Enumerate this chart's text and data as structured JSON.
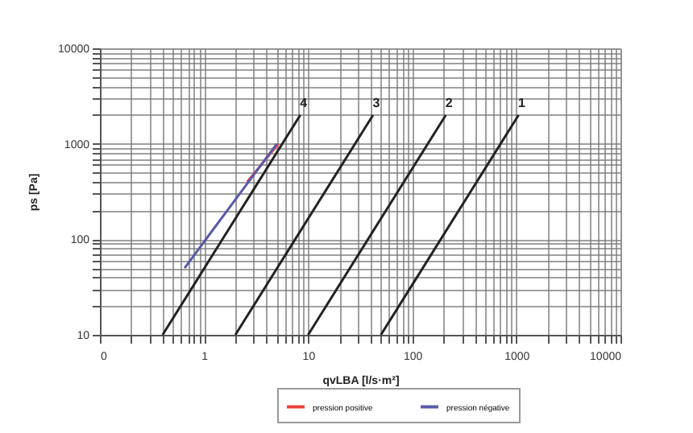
{
  "chart_data": {
    "type": "line",
    "xlabel": "qvLBA [l/s·m²]",
    "ylabel": "ps [Pa]",
    "log": "xy",
    "grid": true,
    "legend": "bottom",
    "line_style": "solid",
    "marker": "none",
    "xlim": [
      0.1,
      10000
    ],
    "ylim": [
      10,
      10000
    ],
    "xticks": [
      {
        "value": 0.1,
        "label": "0"
      },
      {
        "value": 0.2,
        "label": null
      },
      {
        "value": 0.3,
        "label": null
      },
      {
        "value": 0.4,
        "label": null
      },
      {
        "value": 0.5,
        "label": null
      },
      {
        "value": 0.6,
        "label": null
      },
      {
        "value": 0.7,
        "label": null
      },
      {
        "value": 0.8,
        "label": null
      },
      {
        "value": 0.9,
        "label": null
      },
      1,
      {
        "value": 2,
        "label": null
      },
      {
        "value": 3,
        "label": null
      },
      {
        "value": 4,
        "label": null
      },
      {
        "value": 5,
        "label": null
      },
      {
        "value": 6,
        "label": null
      },
      {
        "value": 7,
        "label": null
      },
      {
        "value": 8,
        "label": null
      },
      {
        "value": 9,
        "label": null
      },
      10,
      {
        "value": 20,
        "label": null
      },
      {
        "value": 30,
        "label": null
      },
      {
        "value": 40,
        "label": null
      },
      {
        "value": 50,
        "label": null
      },
      {
        "value": 60,
        "label": null
      },
      {
        "value": 70,
        "label": null
      },
      {
        "value": 80,
        "label": null
      },
      {
        "value": 90,
        "label": null
      },
      100,
      {
        "value": 200,
        "label": null
      },
      {
        "value": 300,
        "label": null
      },
      {
        "value": 400,
        "label": null
      },
      {
        "value": 500,
        "label": null
      },
      {
        "value": 600,
        "label": null
      },
      {
        "value": 700,
        "label": null
      },
      {
        "value": 800,
        "label": null
      },
      {
        "value": 900,
        "label": null
      },
      1000,
      {
        "value": 2000,
        "label": null
      },
      {
        "value": 3000,
        "label": null
      },
      {
        "value": 4000,
        "label": null
      },
      {
        "value": 5000,
        "label": null
      },
      {
        "value": 6000,
        "label": null
      },
      {
        "value": 7000,
        "label": null
      },
      {
        "value": 8000,
        "label": null
      },
      {
        "value": 9000,
        "label": null
      },
      10000
    ],
    "yticks": [
      10,
      {
        "value": 20,
        "label": null
      },
      {
        "value": 30,
        "label": null
      },
      {
        "value": 40,
        "label": null
      },
      {
        "value": 50,
        "label": null
      },
      {
        "value": 60,
        "label": null
      },
      {
        "value": 70,
        "label": null
      },
      {
        "value": 80,
        "label": null
      },
      {
        "value": 90,
        "label": null
      },
      100,
      {
        "value": 200,
        "label": null
      },
      {
        "value": 300,
        "label": null
      },
      {
        "value": 400,
        "label": null
      },
      {
        "value": 500,
        "label": null
      },
      {
        "value": 600,
        "label": null
      },
      {
        "value": 700,
        "label": null
      },
      {
        "value": 800,
        "label": null
      },
      {
        "value": 900,
        "label": null
      },
      1000,
      {
        "value": 2000,
        "label": null
      },
      {
        "value": 3000,
        "label": null
      },
      {
        "value": 4000,
        "label": null
      },
      {
        "value": 5000,
        "label": null
      },
      {
        "value": 6000,
        "label": null
      },
      {
        "value": 7000,
        "label": null
      },
      {
        "value": 8000,
        "label": null
      },
      {
        "value": 9000,
        "label": null
      },
      10000
    ],
    "series": [
      {
        "color": "#222222",
        "x": [
          50,
          1050
        ],
        "values": [
          10,
          2000
        ]
      },
      {
        "color": "#222222",
        "x": [
          10,
          210
        ],
        "values": [
          10,
          2000
        ]
      },
      {
        "color": "#222222",
        "x": [
          2,
          42
        ],
        "values": [
          10,
          2000
        ]
      },
      {
        "color": "#222222",
        "x": [
          0.4,
          8.4
        ],
        "values": [
          10,
          2000
        ]
      },
      {
        "name": "pression positive",
        "color": "#e8413c",
        "x": [
          2.6,
          5.2
        ],
        "values": [
          400,
          1000
        ]
      },
      {
        "name": "pression négative",
        "color": "#5a5aa8",
        "x": [
          0.65,
          5
        ],
        "values": [
          50,
          1000
        ]
      }
    ],
    "annotations": [
      {
        "text": "1",
        "x": 1050,
        "y": 2000
      },
      {
        "text": "2",
        "x": 210,
        "y": 2000
      },
      {
        "text": "3",
        "x": 42,
        "y": 2000
      },
      {
        "text": "4",
        "x": 8.4,
        "y": 2000
      }
    ]
  }
}
